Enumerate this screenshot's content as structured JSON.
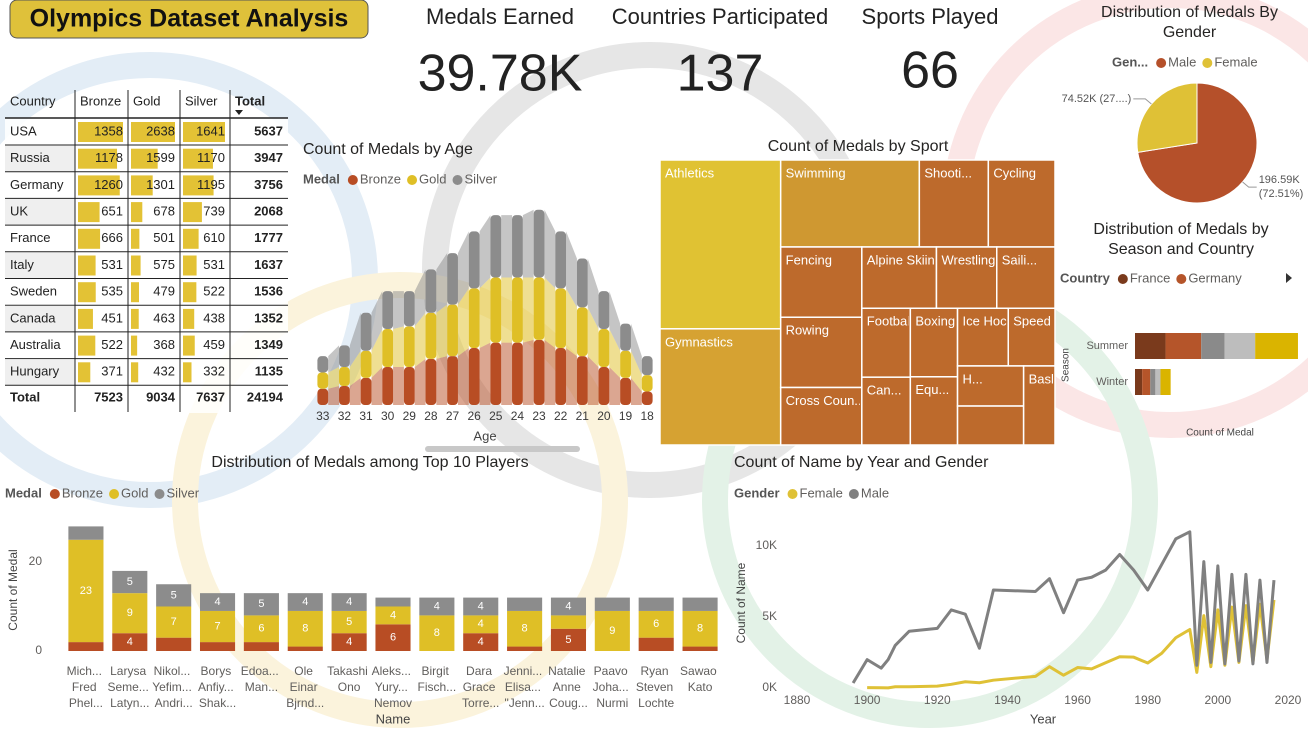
{
  "header": {
    "title": "Olympics Dataset Analysis"
  },
  "kpis": [
    {
      "label": "Medals Earned",
      "value": "39.78K"
    },
    {
      "label": "Countries Participated",
      "value": 137
    },
    {
      "label": "Sports Played",
      "value": 66
    }
  ],
  "table": {
    "columns": [
      "Country",
      "Bronze",
      "Gold",
      "Silver",
      "Total"
    ],
    "rows": [
      [
        "USA",
        1358,
        2638,
        1641,
        5637
      ],
      [
        "Russia",
        1178,
        1599,
        1170,
        3947
      ],
      [
        "Germany",
        1260,
        1301,
        1195,
        3756
      ],
      [
        "UK",
        651,
        678,
        739,
        2068
      ],
      [
        "France",
        666,
        501,
        610,
        1777
      ],
      [
        "Italy",
        531,
        575,
        531,
        1637
      ],
      [
        "Sweden",
        535,
        479,
        522,
        1536
      ],
      [
        "Canada",
        451,
        463,
        438,
        1352
      ],
      [
        "Australia",
        522,
        368,
        459,
        1349
      ],
      [
        "Hungary",
        371,
        432,
        332,
        1135
      ]
    ],
    "total": [
      "Total",
      7523,
      9034,
      7637,
      24194
    ],
    "bar_color": "#e3c235"
  },
  "chart_data": [
    {
      "type": "ribbon",
      "title": "Count of Medals by Age",
      "legend_title": "Medal",
      "x_label": "Age",
      "categories": [
        33,
        32,
        31,
        30,
        29,
        28,
        27,
        26,
        25,
        24,
        23,
        22,
        21,
        20,
        19,
        18
      ],
      "ylim": [
        0,
        4000
      ],
      "series": [
        {
          "name": "Bronze",
          "color": "#b84d24",
          "values": [
            300,
            350,
            500,
            700,
            700,
            850,
            900,
            1050,
            1150,
            1150,
            1200,
            1050,
            900,
            700,
            500,
            250
          ]
        },
        {
          "name": "Gold",
          "color": "#dfbf26",
          "values": [
            300,
            350,
            500,
            700,
            750,
            850,
            950,
            1100,
            1200,
            1200,
            1150,
            1100,
            900,
            700,
            500,
            300
          ]
        },
        {
          "name": "Silver",
          "color": "#8c8c8c",
          "values": [
            300,
            400,
            700,
            700,
            650,
            800,
            950,
            1050,
            1150,
            1150,
            1250,
            1050,
            900,
            700,
            500,
            350
          ]
        }
      ]
    },
    {
      "type": "treemap",
      "title": "Count of Medals by Sport",
      "categories": [
        "Athletics",
        "Gymnastics",
        "Swimming",
        "Shooti...",
        "Cycling",
        "Fencing",
        "Rowing",
        "Cross Coun...",
        "Alpine Skiing",
        "Wrestling",
        "Saili...",
        "Football",
        "Can...",
        "Boxing",
        "Equ...",
        "Ice Hockey",
        "Speed Sk...",
        "H...",
        null,
        "Basket..."
      ],
      "values": [
        4075,
        2804,
        2412,
        1200,
        1160,
        1140,
        1140,
        933,
        915,
        739,
        714,
        669,
        658,
        647,
        644,
        585,
        539,
        530,
        515,
        496
      ],
      "colors": [
        "#e0c233",
        "#d6a232",
        "#cf9831",
        "#bd6a2c",
        "#bd6a2c",
        "#bd6a2c",
        "#bd6a2c",
        "#bd6a2c",
        "#bd6a2c",
        "#bd6a2c",
        "#bd6a2c",
        "#bd6a2c",
        "#bd6a2c",
        "#bd6a2c",
        "#bd6a2c",
        "#bd6a2c",
        "#bd6a2c",
        "#bd6a2c",
        "#bd6a2c",
        "#bd6a2c"
      ]
    },
    {
      "type": "pie",
      "title": "Distribution of Medals By Gender",
      "legend_title": "Gen...",
      "categories": [
        "Male",
        "Female"
      ],
      "values": [
        196590,
        74520
      ],
      "value_labels": [
        "196.59K (72.51%)",
        "74.52K (27....)"
      ],
      "colors": [
        "#b5502a",
        "#dfc136"
      ]
    },
    {
      "type": "stacked-barh",
      "title": "Distribution of Medals by Season and Country",
      "legend_title": "Country",
      "y_label": "Season",
      "x_label": "Count of Medal",
      "categories": [
        "Summer",
        "Winter"
      ],
      "xlim": [
        0,
        8100
      ],
      "series": [
        {
          "name": "France",
          "color": "#7a3a1c",
          "values": [
            1500,
            350
          ]
        },
        {
          "name": "Germany",
          "color": "#b5552a",
          "values": [
            1750,
            400
          ]
        },
        {
          "name": null,
          "color": "#8a8a8a",
          "values": [
            1150,
            250
          ]
        },
        {
          "name": null,
          "color": "#bdbdbd",
          "values": [
            1500,
            250
          ]
        },
        {
          "name": null,
          "color": "#dab400",
          "values": [
            2100,
            500
          ]
        }
      ]
    },
    {
      "type": "stacked-column",
      "title": "Distribution of Medals among Top 10 Players",
      "legend_title": "Medal",
      "x_label": "Name",
      "y_label": "Count of Medal",
      "categories": [
        "Mich...\nFred\nPhel...",
        "Larysa\nSeme...\nLatyn...",
        "Nikol...\nYefim...\nAndri...",
        "Borys\nAnfiy...\nShak...",
        "Edoa...\nMan...",
        "Ole\nEinar\nBjrnd...",
        "Takashi\nOno",
        "Aleks...\nYury...\nNemov",
        "Birgit\nFisch...",
        "Dara\nGrace\nTorre...",
        "Jenni...\nElisa...\n\"Jenn...",
        "Natalie\nAnne\nCoug...",
        "Paavo\nJoha...\nNurmi",
        "Ryan\nSteven\nLochte",
        "Sawao\nKato"
      ],
      "ylim": [
        0,
        30
      ],
      "yticks": [
        0,
        20
      ],
      "series": [
        {
          "name": "Bronze",
          "color": "#b84d24",
          "values": [
            2,
            4,
            3,
            2,
            2,
            1,
            4,
            6,
            0,
            4,
            1,
            5,
            0,
            3,
            1
          ]
        },
        {
          "name": "Gold",
          "color": "#dfbf26",
          "values": [
            23,
            9,
            7,
            7,
            6,
            8,
            5,
            4,
            8,
            4,
            8,
            3,
            9,
            6,
            8
          ]
        },
        {
          "name": "Silver",
          "color": "#8c8c8c",
          "values": [
            3,
            5,
            5,
            4,
            5,
            4,
            4,
            2,
            4,
            4,
            3,
            4,
            3,
            3,
            3
          ]
        }
      ]
    },
    {
      "type": "line",
      "title": "Count of Name by Year and Gender",
      "legend_title": "Gender",
      "x_label": "Year",
      "y_label": "Count of Name",
      "x": [
        1896,
        1900,
        1904,
        1906,
        1908,
        1912,
        1920,
        1924,
        1928,
        1932,
        1936,
        1948,
        1952,
        1956,
        1960,
        1964,
        1968,
        1972,
        1976,
        1980,
        1984,
        1988,
        1992,
        1994,
        1996,
        1998,
        2000,
        2002,
        2004,
        2006,
        2008,
        2010,
        2012,
        2014,
        2016
      ],
      "xlim": [
        1880,
        2020
      ],
      "xticks": [
        1880,
        1900,
        1920,
        1940,
        1960,
        1980,
        2000,
        2020
      ],
      "ylim": [
        0,
        12000
      ],
      "yticks": [
        {
          "value": 0,
          "label": "0K"
        },
        {
          "value": 5000,
          "label": "5K"
        },
        {
          "value": 10000,
          "label": "10K"
        }
      ],
      "series": [
        {
          "name": "Female",
          "color": "#dfc136",
          "values": [
            null,
            30,
            20,
            10,
            90,
            90,
            130,
            260,
            440,
            370,
            550,
            820,
            1500,
            900,
            1440,
            1350,
            1780,
            2200,
            2170,
            1760,
            2450,
            3540,
            4120,
            1100,
            5100,
            1500,
            5500,
            1600,
            5700,
            1800,
            5800,
            1800,
            5900,
            2000,
            6200
          ]
        },
        {
          "name": "Male",
          "color": "#808080",
          "values": [
            350,
            2000,
            1400,
            2000,
            3000,
            4000,
            4200,
            5500,
            5200,
            2800,
            6900,
            6800,
            7700,
            5300,
            7600,
            7800,
            8300,
            9400,
            8300,
            6900,
            8700,
            10500,
            11000,
            1600,
            8900,
            1800,
            8600,
            1700,
            8000,
            1900,
            8000,
            1700,
            7600,
            1800,
            7600
          ]
        }
      ]
    }
  ]
}
